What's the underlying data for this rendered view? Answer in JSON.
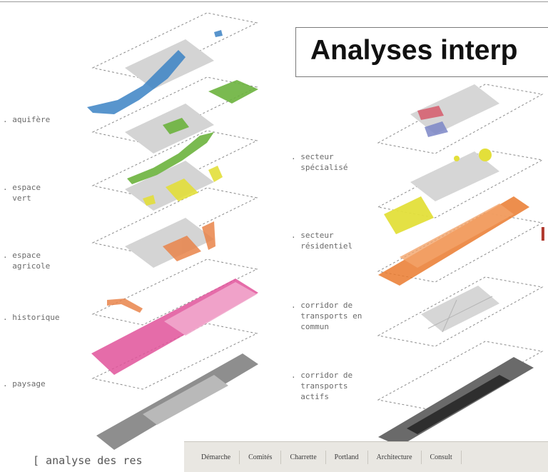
{
  "title": "Analyses interp",
  "left_labels": [
    ". aquifère",
    ". espace\n  vert",
    ". espace\n  agricole",
    ". historique",
    ". paysage"
  ],
  "right_labels": [
    ". secteur\n  spécialisé",
    ". secteur\n  résidentiel",
    ". corridor de\n  transports en\n  commun",
    ". corridor de\n  transports\n  actifs"
  ],
  "caption": "[ analyse des res",
  "tabs": [
    "Démarche",
    "Comités",
    "Charrette",
    "Portland",
    "Architecture",
    "Consult"
  ],
  "edge_glyph": "I",
  "colors": {
    "aquifer": "#3b82c4",
    "green_space": "#6cb33e",
    "agricultural": "#e3df3a",
    "historic": "#e9844a",
    "landscape": "#e0529a",
    "specialized": "#d65b6b",
    "residential": "#ea7a2e",
    "layer_grey": "#cfcfcf",
    "outline": "#8a8a8a"
  }
}
